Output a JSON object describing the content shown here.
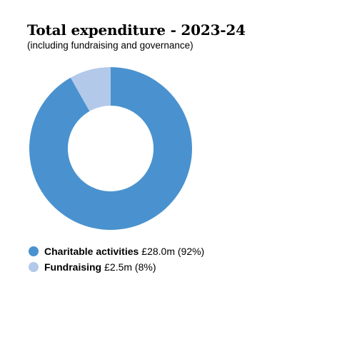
{
  "chart_data": {
    "type": "pie",
    "donut": true,
    "title": "Total expenditure - 2023-24",
    "subtitle": "(including fundraising and governance)",
    "categories": [
      "Charitable activities",
      "Fundraising"
    ],
    "values": [
      28.0,
      2.5
    ],
    "value_labels": [
      "£28.0m",
      "£2.5m"
    ],
    "percent_labels": [
      "(92%)",
      "(8%)"
    ],
    "colors": [
      "#4a92cf",
      "#b3c9e9"
    ],
    "legend_position": "bottom-left"
  },
  "legend": [
    {
      "name": "Charitable activities",
      "value": "£28.0m (92%)"
    },
    {
      "name": "Fundraising",
      "value": "£2.5m (8%)"
    }
  ]
}
